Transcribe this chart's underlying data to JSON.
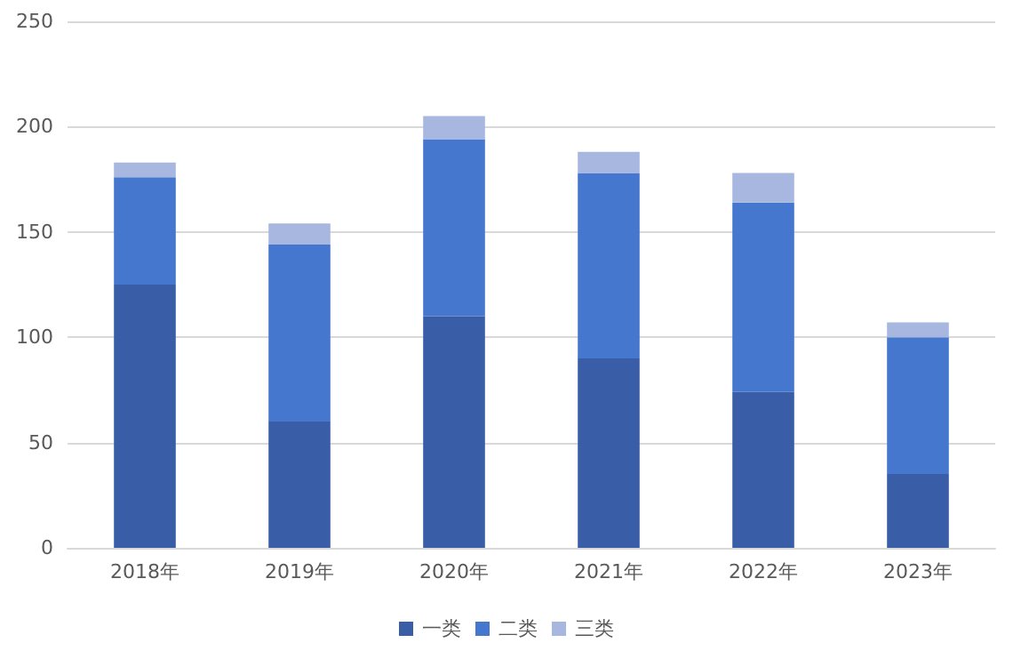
{
  "chart_data": {
    "type": "bar",
    "stacked": true,
    "categories": [
      "2018年",
      "2019年",
      "2020年",
      "2021年",
      "2022年",
      "2023年"
    ],
    "series": [
      {
        "name": "一类",
        "color": "#3a5da8",
        "values": [
          125,
          60,
          110,
          90,
          74,
          35
        ]
      },
      {
        "name": "二类",
        "color": "#4677cf",
        "values": [
          51,
          84,
          84,
          88,
          90,
          65
        ]
      },
      {
        "name": "三类",
        "color": "#a8b7e0",
        "values": [
          7,
          10,
          11,
          10,
          14,
          7
        ]
      }
    ],
    "ylim": [
      0,
      250
    ],
    "yticks": [
      0,
      50,
      100,
      150,
      200,
      250
    ],
    "grid": "y",
    "legend": "bottom"
  }
}
